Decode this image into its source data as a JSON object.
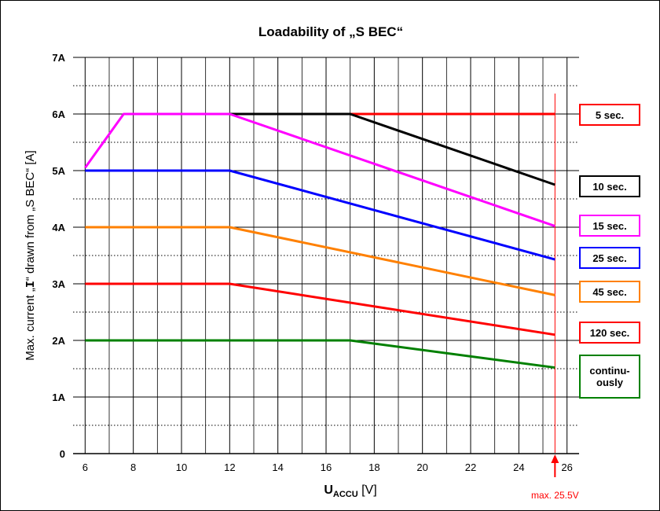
{
  "chart_data": {
    "type": "line",
    "title": "Loadability of „S BEC“",
    "ylabel": "Max. current „I“ drawn from „S BEC“ [A]",
    "xlabel_main": "U",
    "xlabel_sub": "ACCU",
    "xlabel_unit": "[V]",
    "xlim": [
      5.5,
      26.5
    ],
    "ylim": [
      0,
      7
    ],
    "x_ticks": [
      "6",
      "8",
      "10",
      "12",
      "14",
      "16",
      "18",
      "20",
      "22",
      "24",
      "26"
    ],
    "y_ticks": [
      "0",
      "1A",
      "2A",
      "3A",
      "4A",
      "5A",
      "6A",
      "7A"
    ],
    "grid": true,
    "legend_position": "right",
    "max_marker": {
      "x": 25.5,
      "label": "max. 25.5V",
      "color": "#ff0000"
    },
    "series": [
      {
        "name": "5 sec.",
        "color": "#ff0000",
        "x": [
          17,
          25.5
        ],
        "y": [
          6,
          6
        ]
      },
      {
        "name": "10 sec.",
        "color": "#000000",
        "x": [
          12,
          17,
          25.5
        ],
        "y": [
          6,
          6,
          4.75
        ]
      },
      {
        "name": "15 sec.",
        "color": "#ff00ff",
        "x": [
          6,
          7.6,
          12,
          25.5
        ],
        "y": [
          5.05,
          6,
          6,
          4.02
        ]
      },
      {
        "name": "25 sec.",
        "color": "#0000ff",
        "x": [
          6,
          12,
          25.5
        ],
        "y": [
          5,
          5,
          3.43
        ]
      },
      {
        "name": "45 sec.",
        "color": "#ff8000",
        "x": [
          6,
          12,
          25.5
        ],
        "y": [
          4,
          4,
          2.8
        ]
      },
      {
        "name": "120 sec.",
        "color": "#ff0000",
        "x": [
          6,
          12,
          25.5
        ],
        "y": [
          3,
          3,
          2.1
        ]
      },
      {
        "name": "continu-ously",
        "display": [
          "continu-",
          "ously"
        ],
        "color": "#008000",
        "x": [
          6,
          17,
          25.5
        ],
        "y": [
          2,
          2,
          1.52
        ]
      }
    ]
  }
}
